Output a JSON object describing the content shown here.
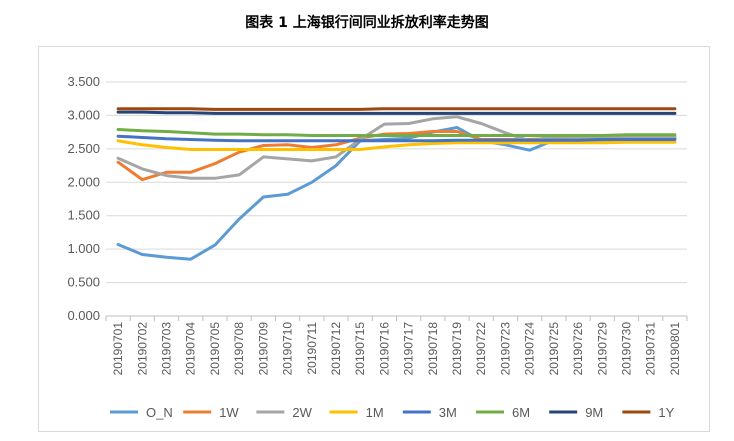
{
  "page": {
    "title": "图表 1 上海银行间同业拆放利率走势图"
  },
  "chart_data": {
    "type": "line",
    "title": "图表 1 上海银行间同业拆放利率走势图",
    "xlabel": "",
    "ylabel": "",
    "ylim": [
      0,
      3.5
    ],
    "yticks": [
      "0.000",
      "0.500",
      "1.000",
      "1.500",
      "2.000",
      "2.500",
      "3.000",
      "3.500"
    ],
    "grid": true,
    "legend_position": "bottom",
    "categories": [
      "20190701",
      "20190702",
      "20190703",
      "20190704",
      "20190705",
      "20190708",
      "20190709",
      "20190710",
      "20190711",
      "20190712",
      "20190715",
      "20190716",
      "20190717",
      "20190718",
      "20190719",
      "20190722",
      "20190723",
      "20190724",
      "20190725",
      "20190726",
      "20190729",
      "20190730",
      "20190731",
      "20190801"
    ],
    "series": [
      {
        "name": "O_N",
        "color": "#5b9bd5",
        "values": [
          1.07,
          0.92,
          0.88,
          0.85,
          1.06,
          1.45,
          1.78,
          1.82,
          2.0,
          2.25,
          2.62,
          2.64,
          2.66,
          2.75,
          2.82,
          2.62,
          2.56,
          2.48,
          2.63,
          2.62,
          2.63,
          2.64,
          2.65,
          2.66
        ]
      },
      {
        "name": "1W",
        "color": "#ed7d31",
        "values": [
          2.3,
          2.04,
          2.15,
          2.15,
          2.28,
          2.45,
          2.55,
          2.56,
          2.52,
          2.56,
          2.66,
          2.72,
          2.73,
          2.76,
          2.76,
          2.64,
          2.64,
          2.64,
          2.66,
          2.66,
          2.66,
          2.66,
          2.66,
          2.66
        ]
      },
      {
        "name": "2W",
        "color": "#a5a5a5",
        "values": [
          2.36,
          2.2,
          2.1,
          2.06,
          2.06,
          2.11,
          2.38,
          2.35,
          2.32,
          2.38,
          2.64,
          2.87,
          2.88,
          2.95,
          2.98,
          2.88,
          2.74,
          2.62,
          2.68,
          2.67,
          2.67,
          2.67,
          2.68,
          2.68
        ]
      },
      {
        "name": "1M",
        "color": "#ffc000",
        "values": [
          2.62,
          2.56,
          2.52,
          2.49,
          2.49,
          2.49,
          2.49,
          2.49,
          2.49,
          2.49,
          2.49,
          2.53,
          2.56,
          2.58,
          2.59,
          2.59,
          2.59,
          2.59,
          2.59,
          2.59,
          2.59,
          2.6,
          2.6,
          2.6
        ]
      },
      {
        "name": "3M",
        "color": "#4472c4",
        "values": [
          2.69,
          2.67,
          2.65,
          2.64,
          2.63,
          2.62,
          2.62,
          2.62,
          2.62,
          2.62,
          2.62,
          2.62,
          2.62,
          2.62,
          2.63,
          2.63,
          2.63,
          2.63,
          2.63,
          2.63,
          2.64,
          2.64,
          2.64,
          2.64
        ]
      },
      {
        "name": "6M",
        "color": "#70ad47",
        "values": [
          2.79,
          2.77,
          2.76,
          2.74,
          2.72,
          2.72,
          2.71,
          2.71,
          2.7,
          2.7,
          2.7,
          2.7,
          2.7,
          2.7,
          2.7,
          2.7,
          2.7,
          2.7,
          2.7,
          2.7,
          2.7,
          2.71,
          2.71,
          2.71
        ]
      },
      {
        "name": "9M",
        "color": "#264478",
        "values": [
          3.05,
          3.05,
          3.04,
          3.04,
          3.03,
          3.03,
          3.03,
          3.03,
          3.03,
          3.03,
          3.03,
          3.03,
          3.03,
          3.03,
          3.03,
          3.03,
          3.03,
          3.03,
          3.03,
          3.03,
          3.03,
          3.03,
          3.03,
          3.03
        ]
      },
      {
        "name": "1Y",
        "color": "#9e480e",
        "values": [
          3.1,
          3.1,
          3.1,
          3.1,
          3.09,
          3.09,
          3.09,
          3.09,
          3.09,
          3.09,
          3.09,
          3.1,
          3.1,
          3.1,
          3.1,
          3.1,
          3.1,
          3.1,
          3.1,
          3.1,
          3.1,
          3.1,
          3.1,
          3.1
        ]
      }
    ]
  }
}
